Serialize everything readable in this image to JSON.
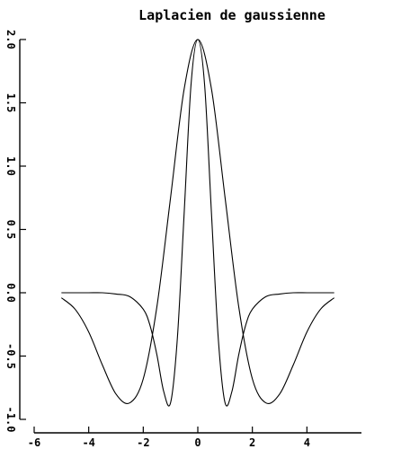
{
  "chart_data": {
    "type": "line",
    "title": "Laplacien de gaussienne",
    "xlabel": "",
    "ylabel": "",
    "xlim": [
      -6,
      6
    ],
    "ylim": [
      -1.0,
      2.0
    ],
    "xticks": [
      -6,
      -4,
      -2,
      0,
      2,
      4
    ],
    "xtick_labels": [
      "-6",
      "-4",
      "-2",
      "0",
      "2",
      "4"
    ],
    "yticks": [
      -1.0,
      -0.5,
      0.0,
      0.5,
      1.0,
      1.5,
      2.0
    ],
    "ytick_labels": [
      "-1.0",
      "-0.5",
      "0.0",
      "0.5",
      "1.0",
      "1.5",
      "2.0"
    ],
    "grid": false,
    "series": [
      {
        "x": [
          -5.0,
          -4.5,
          -4.0,
          -3.5,
          -3.0,
          -2.5,
          -2.0,
          -1.5,
          -1.0,
          -0.5,
          0.0,
          0.5,
          1.0,
          1.5,
          2.0,
          2.5,
          3.0,
          3.5,
          4.0,
          4.5,
          5.0
        ],
        "values": [
          -0.04,
          -0.13,
          -0.31,
          -0.57,
          -0.8,
          -0.87,
          -0.68,
          -0.11,
          0.75,
          1.61,
          2.0,
          1.61,
          0.75,
          -0.11,
          -0.68,
          -0.87,
          -0.8,
          -0.57,
          -0.31,
          -0.13,
          -0.04
        ]
      },
      {
        "x": [
          -5.0,
          -4.5,
          -4.0,
          -3.5,
          -3.0,
          -2.5,
          -2.0,
          -1.75,
          -1.5,
          -1.25,
          -1.0,
          -0.75,
          -0.5,
          -0.25,
          0.0,
          0.25,
          0.5,
          0.75,
          1.0,
          1.25,
          1.5,
          1.75,
          2.0,
          2.5,
          3.0,
          3.5,
          4.0,
          4.5,
          5.0
        ],
        "values": [
          0.0,
          0.0,
          0.0,
          0.0,
          -0.01,
          -0.03,
          -0.13,
          -0.26,
          -0.49,
          -0.78,
          -0.87,
          -0.36,
          0.63,
          1.64,
          2.0,
          1.64,
          0.63,
          -0.36,
          -0.87,
          -0.78,
          -0.49,
          -0.26,
          -0.13,
          -0.03,
          -0.01,
          0.0,
          0.0,
          0.0,
          0.0
        ]
      }
    ]
  }
}
